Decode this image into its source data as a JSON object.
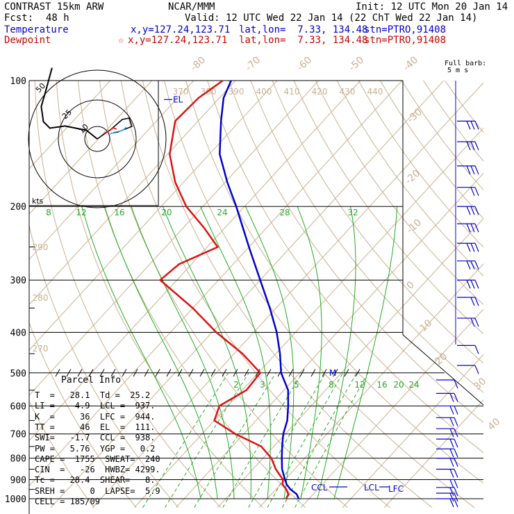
{
  "header": {
    "model_line": "CONTRAST 15km ARW",
    "fcst_label": "Fcst:",
    "fcst_value": "48 h",
    "center": "NCAR/MMM",
    "init": "Init: 12 UTC Mon 20 Jan 14",
    "valid": "Valid: 12 UTC Wed 22 Jan 14 (22 ChT Wed 22 Jan 14)",
    "temp_label": "Temperature",
    "temp_xy": "x,y=127.24,123.71",
    "temp_latlon": "lat,lon=  7.33, 134.48",
    "temp_stn": "stn=PTRO,91408",
    "dew_label": "Dewpoint",
    "dew_xy": "x,y=127.24,123.71",
    "dew_latlon": "lat,lon=  7.33, 134.48",
    "dew_stn": "stn=PTRO,91408",
    "barb_note_1": "Full barb:",
    "barb_note_2": "5 m s"
  },
  "parcel_info": {
    "title": "Parcel Info",
    "rows": [
      "T  =   28.1  Td =  25.2",
      "LI =   -4.9  LCL =  937.",
      "K  =     36  LFC =  944.",
      "TT =     46  EL  =  111.",
      "SWI=   -1.7  CCL =  938.",
      "PW =   5.76  YGP =   0.2",
      "CAPE =  1755  SWEAT=  240",
      "CIN  =   -26  HWBZ= 4299.",
      "Tc =   28.4  SHEAR=   8.",
      "SREH =     0  LAPSE=  5.9",
      "CELL = 185/09"
    ]
  },
  "colors": {
    "temperature": "#0000cc",
    "dewpoint": "#dd1111",
    "isotherm": "#c8b090",
    "dry_adiabat": "#c8b090",
    "moist_adiabat": "#22aa22",
    "mixing_ratio": "#22aa22",
    "isobar": "#000000",
    "hodograph": "#000000"
  },
  "chart_data": {
    "type": "line",
    "title": "",
    "xlabel": "",
    "ylabel": "",
    "y_scale": "log-pressure",
    "pressure_ticks": [
      "100",
      "200",
      "300",
      "400",
      "500",
      "600",
      "700",
      "800",
      "900",
      "1000"
    ],
    "isotherm_labels": [
      "-80",
      "-70",
      "-60",
      "-50",
      "-40",
      "-30",
      "-20",
      "-10",
      "0",
      "10",
      "20",
      "30",
      "40"
    ],
    "theta_labels": [
      "370",
      "380",
      "390",
      "400",
      "410",
      "420",
      "430",
      "440"
    ],
    "dry_adiabat_labels": [
      "290",
      "280",
      "270"
    ],
    "theta_e_labels": [
      "8",
      "12",
      "16",
      "20",
      "24",
      "28",
      "32"
    ],
    "mixing_ratio_labels": [
      "2",
      "3",
      "5",
      "8",
      "12",
      "16",
      "20",
      "24"
    ],
    "level_labels": {
      "el": "EL",
      "ccl": "CCL",
      "lcl": "LCL",
      "lfc": "LFC",
      "m": "M"
    },
    "series": [
      {
        "name": "Temperature",
        "points": [
          [
            1000,
            27.5
          ],
          [
            975,
            26.0
          ],
          [
            950,
            23.5
          ],
          [
            925,
            21.5
          ],
          [
            900,
            20.0
          ],
          [
            850,
            17.0
          ],
          [
            800,
            14.5
          ],
          [
            750,
            12.0
          ],
          [
            700,
            9.5
          ],
          [
            650,
            7.5
          ],
          [
            600,
            4.5
          ],
          [
            550,
            1.0
          ],
          [
            500,
            -4.5
          ],
          [
            450,
            -9.0
          ],
          [
            400,
            -14.5
          ],
          [
            350,
            -21.5
          ],
          [
            300,
            -30.0
          ],
          [
            250,
            -40.0
          ],
          [
            200,
            -52.0
          ],
          [
            175,
            -59.5
          ],
          [
            150,
            -67.5
          ],
          [
            125,
            -74.5
          ],
          [
            110,
            -79.0
          ],
          [
            100,
            -81.0
          ]
        ]
      },
      {
        "name": "Dewpoint",
        "points": [
          [
            1000,
            24.5
          ],
          [
            975,
            24.0
          ],
          [
            950,
            22.5
          ],
          [
            925,
            20.5
          ],
          [
            900,
            19.5
          ],
          [
            850,
            15.5
          ],
          [
            800,
            12.0
          ],
          [
            750,
            7.0
          ],
          [
            700,
            -2.0
          ],
          [
            650,
            -10.0
          ],
          [
            600,
            -12.0
          ],
          [
            550,
            -9.0
          ],
          [
            500,
            -9.5
          ],
          [
            450,
            -18.0
          ],
          [
            400,
            -29.0
          ],
          [
            350,
            -40.0
          ],
          [
            300,
            -54.0
          ],
          [
            275,
            -53.0
          ],
          [
            250,
            -47.5
          ],
          [
            225,
            -55.0
          ],
          [
            200,
            -64.0
          ],
          [
            175,
            -72.0
          ],
          [
            150,
            -79.5
          ],
          [
            125,
            -85.5
          ],
          [
            110,
            -85.0
          ],
          [
            100,
            -83.0
          ]
        ]
      }
    ],
    "hodograph": {
      "ring_labels": [
        "10",
        "25",
        "50"
      ],
      "unit": "kts",
      "trace": [
        [
          0,
          0
        ],
        [
          -5,
          4
        ],
        [
          -15,
          6
        ],
        [
          -22,
          5
        ],
        [
          -25,
          8
        ],
        [
          -26,
          15
        ],
        [
          -24,
          22
        ],
        [
          -21,
          33
        ]
      ],
      "trace_lower": [
        [
          0,
          0
        ],
        [
          3,
          4
        ],
        [
          8,
          6
        ],
        [
          9,
          2
        ]
      ]
    },
    "wind_barbs_right": [
      {
        "p": 125,
        "n": 3
      },
      {
        "p": 140,
        "n": 3
      },
      {
        "p": 160,
        "n": 3
      },
      {
        "p": 180,
        "n": 2
      },
      {
        "p": 200,
        "n": 3
      },
      {
        "p": 220,
        "n": 3
      },
      {
        "p": 245,
        "n": 3
      },
      {
        "p": 270,
        "n": 3
      },
      {
        "p": 300,
        "n": 3
      },
      {
        "p": 330,
        "n": 2
      },
      {
        "p": 370,
        "n": 2
      },
      {
        "p": 430,
        "n": 1
      },
      {
        "p": 480,
        "n": 1
      }
    ],
    "wind_barbs_lower": [
      {
        "p": 520,
        "n": 1
      },
      {
        "p": 560,
        "n": 2
      },
      {
        "p": 600,
        "n": 2
      },
      {
        "p": 640,
        "n": 2
      },
      {
        "p": 680,
        "n": 2
      },
      {
        "p": 720,
        "n": 2
      },
      {
        "p": 760,
        "n": 2
      },
      {
        "p": 800,
        "n": 2
      },
      {
        "p": 850,
        "n": 2
      },
      {
        "p": 900,
        "n": 2
      },
      {
        "p": 940,
        "n": 2
      },
      {
        "p": 970,
        "n": 2
      },
      {
        "p": 1000,
        "n": 2
      }
    ]
  }
}
